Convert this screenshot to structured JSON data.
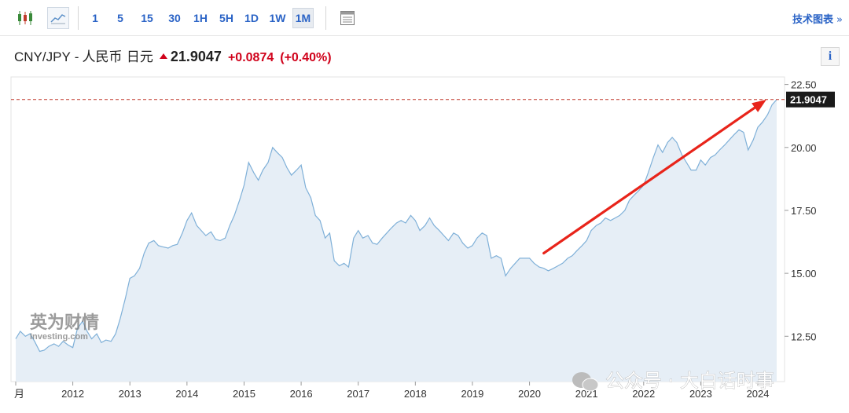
{
  "toolbar": {
    "timeframes": [
      "1",
      "5",
      "15",
      "30",
      "1H",
      "5H",
      "1D",
      "1W",
      "1M"
    ],
    "active_timeframe": "1M",
    "tech_chart_label": "技术图表",
    "tech_chart_arrow": "»"
  },
  "quote": {
    "pair": "CNY/JPY",
    "separator": "-",
    "name_cn": "人民币 日元",
    "price": "21.9047",
    "change": "+0.0874",
    "change_pct": "(+0.40%)",
    "direction": "up"
  },
  "info_label": "i",
  "watermark": {
    "cn": "英为财情",
    "en": "Investing",
    "en_suffix": ".com"
  },
  "social_watermark": "公众号 · 大白话时事",
  "colors": {
    "accent": "#2a63c6",
    "up": "#d0021b",
    "line": "#7fb0d8",
    "area": "#e6eef6",
    "arrow": "#e8241a"
  },
  "chart_data": {
    "type": "area",
    "title": "CNY/JPY - 人民币 日元",
    "xlabel": "",
    "ylabel": "",
    "ylim": [
      10.7,
      22.8
    ],
    "xlim": [
      2011.0,
      2024.65
    ],
    "y_ticks": [
      "22.50",
      "20.00",
      "17.50",
      "15.00",
      "12.50"
    ],
    "x_ticks": [
      "2012",
      "2013",
      "2014",
      "2015",
      "2016",
      "2017",
      "2018",
      "2019",
      "2020",
      "2021",
      "2022",
      "2023",
      "2024"
    ],
    "x_tick_partial_left": "月",
    "last_price_label": "21.9047",
    "last_price": 21.9047,
    "series": [
      {
        "values": [
          [
            2011.0,
            12.4
          ],
          [
            2011.08,
            12.7
          ],
          [
            2011.17,
            12.5
          ],
          [
            2011.25,
            12.6
          ],
          [
            2011.33,
            12.3
          ],
          [
            2011.42,
            11.9
          ],
          [
            2011.5,
            11.95
          ],
          [
            2011.58,
            12.1
          ],
          [
            2011.67,
            12.2
          ],
          [
            2011.75,
            12.1
          ],
          [
            2011.83,
            12.3
          ],
          [
            2011.92,
            12.15
          ],
          [
            2012.0,
            12.05
          ],
          [
            2012.08,
            12.8
          ],
          [
            2012.17,
            13.1
          ],
          [
            2012.25,
            12.7
          ],
          [
            2012.33,
            12.4
          ],
          [
            2012.42,
            12.6
          ],
          [
            2012.5,
            12.25
          ],
          [
            2012.58,
            12.35
          ],
          [
            2012.67,
            12.3
          ],
          [
            2012.75,
            12.6
          ],
          [
            2012.83,
            13.2
          ],
          [
            2012.92,
            14.0
          ],
          [
            2013.0,
            14.8
          ],
          [
            2013.08,
            14.9
          ],
          [
            2013.17,
            15.2
          ],
          [
            2013.25,
            15.8
          ],
          [
            2013.33,
            16.2
          ],
          [
            2013.42,
            16.3
          ],
          [
            2013.5,
            16.1
          ],
          [
            2013.58,
            16.05
          ],
          [
            2013.67,
            16.0
          ],
          [
            2013.75,
            16.1
          ],
          [
            2013.83,
            16.15
          ],
          [
            2013.92,
            16.6
          ],
          [
            2014.0,
            17.1
          ],
          [
            2014.08,
            17.4
          ],
          [
            2014.17,
            16.9
          ],
          [
            2014.25,
            16.7
          ],
          [
            2014.33,
            16.5
          ],
          [
            2014.42,
            16.65
          ],
          [
            2014.5,
            16.35
          ],
          [
            2014.58,
            16.3
          ],
          [
            2014.67,
            16.4
          ],
          [
            2014.75,
            16.9
          ],
          [
            2014.83,
            17.3
          ],
          [
            2014.92,
            17.9
          ],
          [
            2015.0,
            18.5
          ],
          [
            2015.08,
            19.4
          ],
          [
            2015.17,
            19.0
          ],
          [
            2015.25,
            18.7
          ],
          [
            2015.33,
            19.1
          ],
          [
            2015.42,
            19.4
          ],
          [
            2015.5,
            20.0
          ],
          [
            2015.58,
            19.8
          ],
          [
            2015.67,
            19.6
          ],
          [
            2015.75,
            19.2
          ],
          [
            2015.83,
            18.9
          ],
          [
            2015.92,
            19.1
          ],
          [
            2016.0,
            19.3
          ],
          [
            2016.08,
            18.4
          ],
          [
            2016.17,
            18.0
          ],
          [
            2016.25,
            17.3
          ],
          [
            2016.33,
            17.1
          ],
          [
            2016.42,
            16.4
          ],
          [
            2016.5,
            16.6
          ],
          [
            2016.58,
            15.5
          ],
          [
            2016.67,
            15.3
          ],
          [
            2016.75,
            15.4
          ],
          [
            2016.83,
            15.25
          ],
          [
            2016.92,
            16.4
          ],
          [
            2017.0,
            16.7
          ],
          [
            2017.08,
            16.4
          ],
          [
            2017.17,
            16.5
          ],
          [
            2017.25,
            16.2
          ],
          [
            2017.33,
            16.15
          ],
          [
            2017.42,
            16.4
          ],
          [
            2017.5,
            16.6
          ],
          [
            2017.58,
            16.8
          ],
          [
            2017.67,
            17.0
          ],
          [
            2017.75,
            17.1
          ],
          [
            2017.83,
            17.0
          ],
          [
            2017.92,
            17.3
          ],
          [
            2018.0,
            17.1
          ],
          [
            2018.08,
            16.7
          ],
          [
            2018.17,
            16.9
          ],
          [
            2018.25,
            17.2
          ],
          [
            2018.33,
            16.9
          ],
          [
            2018.42,
            16.7
          ],
          [
            2018.5,
            16.5
          ],
          [
            2018.58,
            16.3
          ],
          [
            2018.67,
            16.6
          ],
          [
            2018.75,
            16.5
          ],
          [
            2018.83,
            16.2
          ],
          [
            2018.92,
            16.0
          ],
          [
            2019.0,
            16.1
          ],
          [
            2019.08,
            16.4
          ],
          [
            2019.17,
            16.6
          ],
          [
            2019.25,
            16.5
          ],
          [
            2019.33,
            15.6
          ],
          [
            2019.42,
            15.7
          ],
          [
            2019.5,
            15.6
          ],
          [
            2019.58,
            14.9
          ],
          [
            2019.67,
            15.2
          ],
          [
            2019.75,
            15.4
          ],
          [
            2019.83,
            15.6
          ],
          [
            2019.92,
            15.6
          ],
          [
            2020.0,
            15.6
          ],
          [
            2020.08,
            15.4
          ],
          [
            2020.17,
            15.25
          ],
          [
            2020.25,
            15.2
          ],
          [
            2020.33,
            15.1
          ],
          [
            2020.42,
            15.2
          ],
          [
            2020.5,
            15.3
          ],
          [
            2020.58,
            15.4
          ],
          [
            2020.67,
            15.6
          ],
          [
            2020.75,
            15.7
          ],
          [
            2020.83,
            15.9
          ],
          [
            2020.92,
            16.1
          ],
          [
            2021.0,
            16.3
          ],
          [
            2021.08,
            16.7
          ],
          [
            2021.17,
            16.9
          ],
          [
            2021.25,
            17.0
          ],
          [
            2021.33,
            17.2
          ],
          [
            2021.42,
            17.1
          ],
          [
            2021.5,
            17.2
          ],
          [
            2021.58,
            17.3
          ],
          [
            2021.67,
            17.5
          ],
          [
            2021.75,
            17.9
          ],
          [
            2021.83,
            18.1
          ],
          [
            2021.92,
            18.3
          ],
          [
            2022.0,
            18.5
          ],
          [
            2022.08,
            19.0
          ],
          [
            2022.17,
            19.6
          ],
          [
            2022.25,
            20.1
          ],
          [
            2022.33,
            19.8
          ],
          [
            2022.42,
            20.2
          ],
          [
            2022.5,
            20.4
          ],
          [
            2022.58,
            20.2
          ],
          [
            2022.67,
            19.7
          ],
          [
            2022.75,
            19.4
          ],
          [
            2022.83,
            19.1
          ],
          [
            2022.92,
            19.1
          ],
          [
            2023.0,
            19.5
          ],
          [
            2023.08,
            19.3
          ],
          [
            2023.17,
            19.6
          ],
          [
            2023.25,
            19.7
          ],
          [
            2023.33,
            19.9
          ],
          [
            2023.42,
            20.1
          ],
          [
            2023.5,
            20.3
          ],
          [
            2023.58,
            20.5
          ],
          [
            2023.67,
            20.7
          ],
          [
            2023.75,
            20.6
          ],
          [
            2023.83,
            19.9
          ],
          [
            2023.92,
            20.3
          ],
          [
            2024.0,
            20.8
          ],
          [
            2024.08,
            21.0
          ],
          [
            2024.17,
            21.3
          ],
          [
            2024.25,
            21.7
          ],
          [
            2024.33,
            21.9
          ]
        ]
      }
    ]
  }
}
